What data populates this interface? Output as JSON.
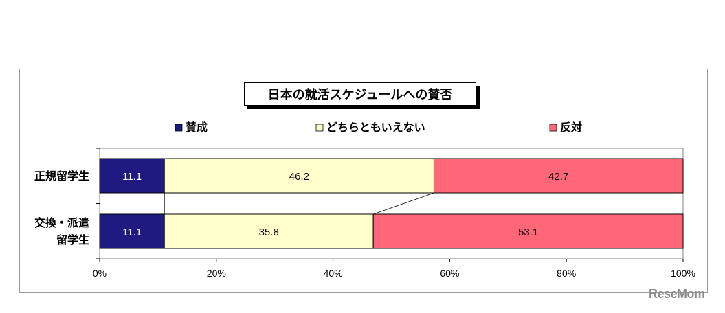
{
  "chart_data": {
    "type": "bar",
    "orientation": "horizontal",
    "stacked": "percent",
    "title": "日本の就活スケジュールへの賛否",
    "categories": [
      "正規留学生",
      "交換・派遣\n留学生"
    ],
    "series": [
      {
        "name": "賛成",
        "color": "#1f1a80",
        "label_color": "#ffffff",
        "values": [
          11.1,
          11.1
        ]
      },
      {
        "name": "どちらともいえない",
        "color": "#ffffcc",
        "label_color": "#000000",
        "values": [
          46.2,
          35.8
        ]
      },
      {
        "name": "反対",
        "color": "#ff6677",
        "label_color": "#000000",
        "values": [
          42.7,
          53.1
        ]
      }
    ],
    "xlim": [
      0,
      100
    ],
    "xticks": [
      "0%",
      "20%",
      "40%",
      "60%",
      "80%",
      "100%"
    ],
    "legend_position": "top",
    "series_lines": true
  },
  "logo_text": "ReseMom"
}
